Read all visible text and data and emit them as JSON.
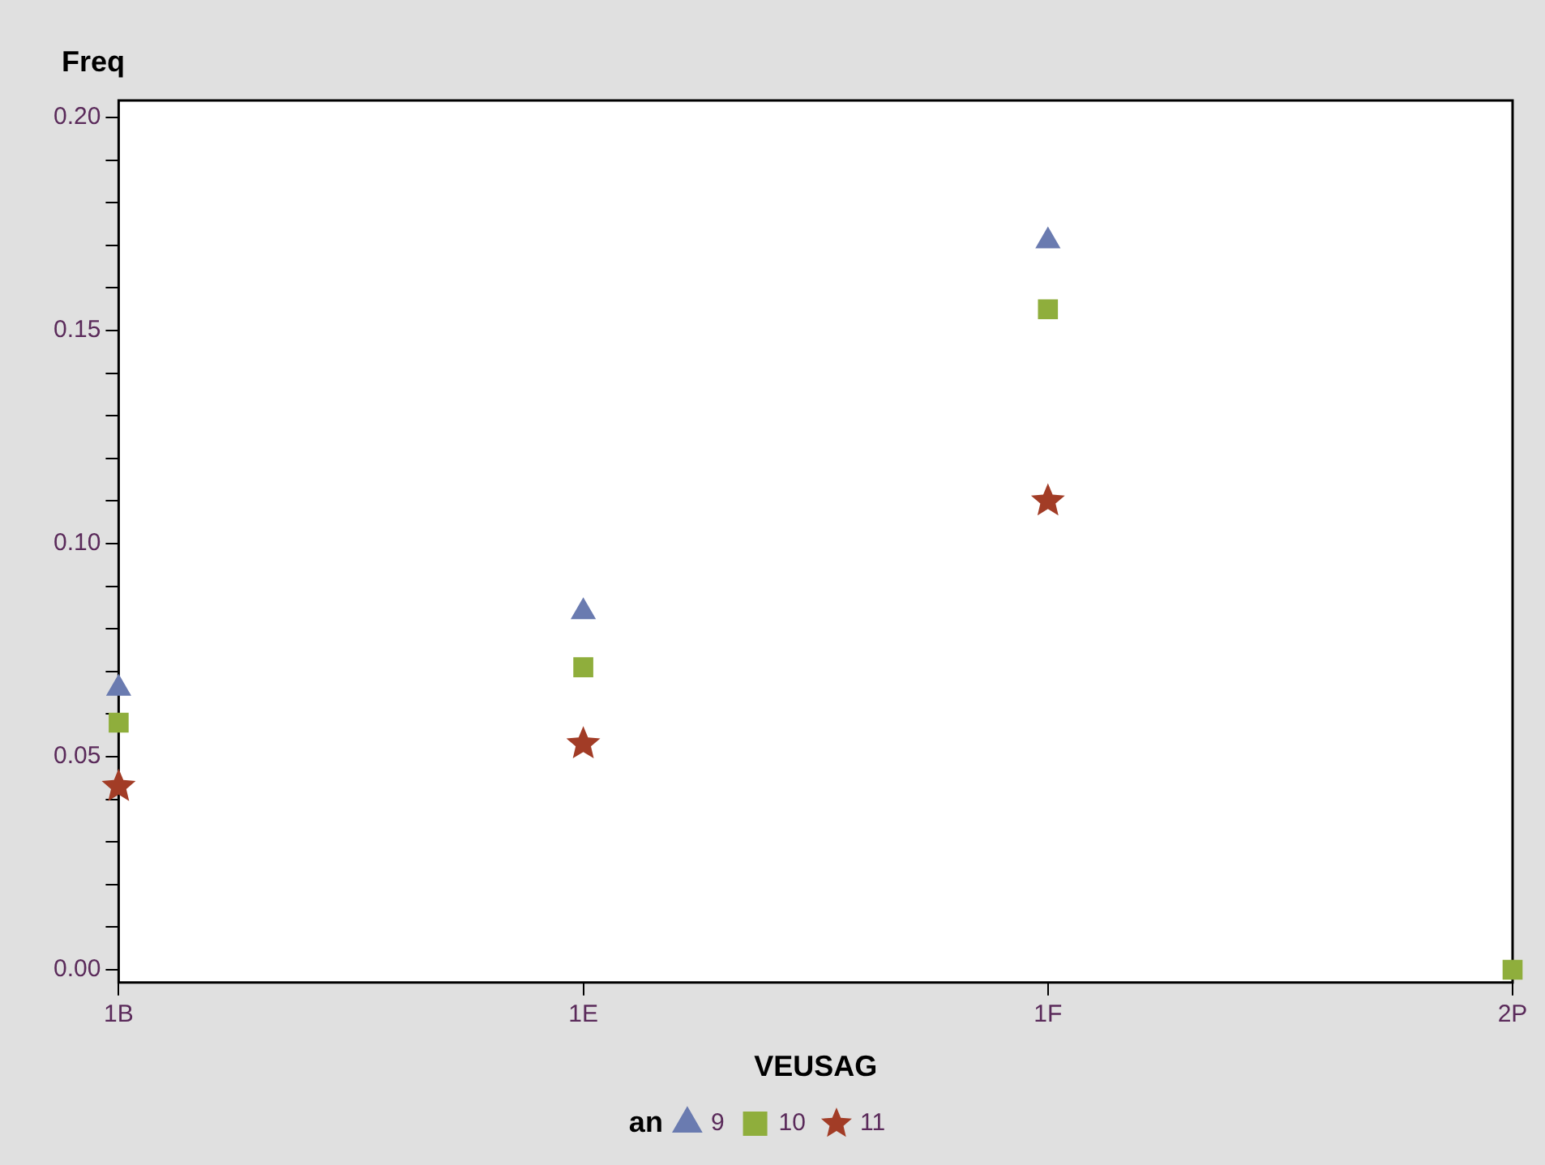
{
  "chart_data": {
    "type": "scatter",
    "xlabel": "VEUSAG",
    "ylabel": "Freq",
    "legend_title": "an",
    "legend": "bottom",
    "grid": false,
    "categories": [
      "1B",
      "1E",
      "1F",
      "2P"
    ],
    "ylim": [
      -0.003,
      0.204
    ],
    "yticks": [
      {
        "value": 0,
        "label": "0.00"
      },
      {
        "value": 0.01,
        "label": null
      },
      {
        "value": 0.02,
        "label": null
      },
      {
        "value": 0.03,
        "label": null
      },
      {
        "value": 0.04,
        "label": null
      },
      {
        "value": 0.05,
        "label": "0.05"
      },
      {
        "value": 0.06,
        "label": null
      },
      {
        "value": 0.07,
        "label": null
      },
      {
        "value": 0.08,
        "label": null
      },
      {
        "value": 0.09,
        "label": null
      },
      {
        "value": 0.1,
        "label": "0.10"
      },
      {
        "value": 0.11,
        "label": null
      },
      {
        "value": 0.12,
        "label": null
      },
      {
        "value": 0.13,
        "label": null
      },
      {
        "value": 0.14,
        "label": null
      },
      {
        "value": 0.15,
        "label": "0.15"
      },
      {
        "value": 0.16,
        "label": null
      },
      {
        "value": 0.17,
        "label": null
      },
      {
        "value": 0.18,
        "label": null
      },
      {
        "value": 0.19,
        "label": null
      },
      {
        "value": 0.2,
        "label": "0.20"
      }
    ],
    "series": [
      {
        "name": "9",
        "color": "#6a7bb0",
        "marker": "triangle",
        "values": [
          0.066,
          0.084,
          0.171,
          null
        ]
      },
      {
        "name": "10",
        "color": "#8fae3c",
        "marker": "square",
        "values": [
          0.058,
          0.071,
          0.155,
          0
        ]
      },
      {
        "name": "11",
        "color": "#a23c26",
        "marker": "star",
        "values": [
          0.043,
          0.053,
          0.11,
          null
        ]
      }
    ]
  }
}
